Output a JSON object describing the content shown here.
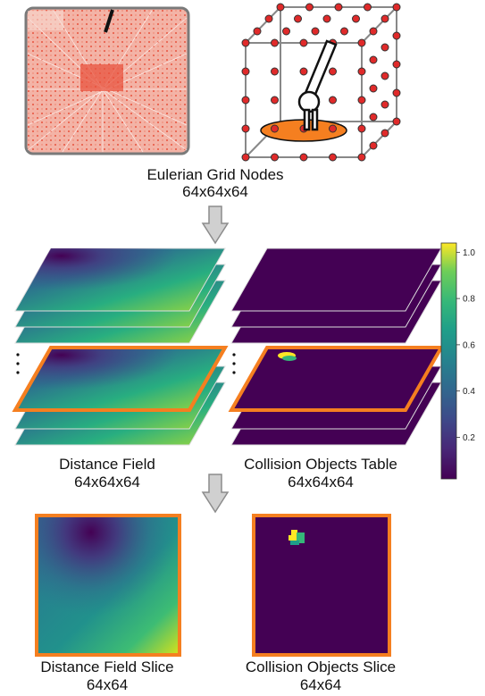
{
  "grid_caption": {
    "title": "Eulerian Grid Nodes",
    "size": "64x64x64"
  },
  "distance_field_caption": {
    "title": "Distance Field",
    "size": "64x64x64"
  },
  "collision_table_caption": {
    "title": "Collision Objects Table",
    "size": "64x64x64"
  },
  "distance_slice_caption": {
    "title": "Distance Field Slice",
    "size": "64x64"
  },
  "collision_slice_caption": {
    "title": "Collision Objects Slice",
    "size": "64x64"
  },
  "colorbar": {
    "ticks": [
      "1.0",
      "0.8",
      "0.6",
      "0.4",
      "0.2"
    ],
    "colormap": "viridis"
  },
  "colors": {
    "highlight": "#f57f20",
    "arrow": "#c8c8c8",
    "node": "#e02a2a",
    "viridis_dark": "#440154",
    "viridis_yellow": "#fde725",
    "viridis_green": "#35b779"
  }
}
